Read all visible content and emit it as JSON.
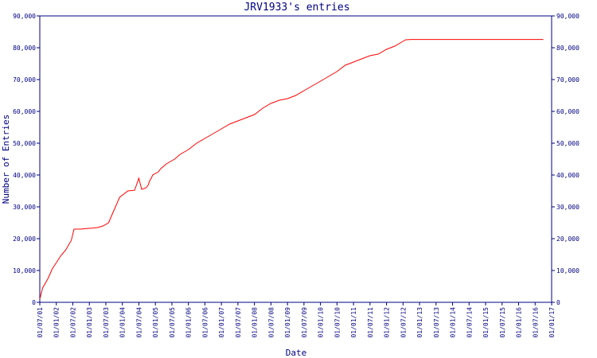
{
  "chart_data": {
    "type": "line",
    "title": "JRV1933's entries",
    "xlabel": "Date",
    "ylabel": "Number of Entries",
    "ylim": [
      0,
      90000
    ],
    "yticks": [
      0,
      10000,
      20000,
      30000,
      40000,
      50000,
      60000,
      70000,
      80000,
      90000
    ],
    "ytick_labels": [
      "0",
      "10,000",
      "20,000",
      "30,000",
      "40,000",
      "50,000",
      "60,000",
      "70,000",
      "80,000",
      "90,000"
    ],
    "xlim": [
      "2001-07-01",
      "2017-01-01"
    ],
    "xtick_labels": [
      "01/07/01",
      "01/01/02",
      "01/07/02",
      "01/01/03",
      "01/07/03",
      "01/01/04",
      "01/07/04",
      "01/01/05",
      "01/07/05",
      "01/01/06",
      "01/07/06",
      "01/01/07",
      "01/07/07",
      "01/01/08",
      "01/07/08",
      "01/01/09",
      "01/07/09",
      "01/01/10",
      "01/07/10",
      "01/01/11",
      "01/07/11",
      "01/01/12",
      "01/07/12",
      "01/01/13",
      "01/07/13",
      "01/01/14",
      "01/07/14",
      "01/01/15",
      "01/07/15",
      "01/01/16",
      "01/07/16",
      "01/01/17"
    ],
    "right_axis": true,
    "grid": false,
    "colors": {
      "axis": "#000080",
      "series": "#ff0000",
      "background": "#ffffff"
    },
    "series": [
      {
        "x": [
          "2001-07-01",
          "2001-08-01",
          "2001-10-01",
          "2001-11-15",
          "2002-01-01",
          "2002-02-15",
          "2002-04-15",
          "2002-06-15",
          "2002-07-15",
          "2002-07-25",
          "2002-10-01",
          "2002-12-01",
          "2003-02-01",
          "2003-04-01",
          "2003-06-01",
          "2003-08-01",
          "2003-10-01",
          "2003-12-01",
          "2004-03-01",
          "2004-05-15",
          "2004-07-01",
          "2004-08-01",
          "2004-09-20",
          "2004-10-15",
          "2004-10-25",
          "2004-11-15",
          "2004-12-01",
          "2005-02-01",
          "2005-03-01",
          "2005-05-01",
          "2005-08-01",
          "2005-10-01",
          "2006-01-01",
          "2006-04-01",
          "2006-07-01",
          "2006-10-01",
          "2007-01-01",
          "2007-04-01",
          "2007-07-01",
          "2007-10-01",
          "2008-01-01",
          "2008-04-01",
          "2008-07-01",
          "2008-10-01",
          "2009-01-01",
          "2009-04-01",
          "2009-07-01",
          "2009-10-01",
          "2010-01-01",
          "2010-04-01",
          "2010-07-01",
          "2010-10-01",
          "2011-01-01",
          "2011-04-01",
          "2011-07-01",
          "2011-10-01",
          "2012-01-01",
          "2012-04-01",
          "2012-07-01",
          "2012-08-01",
          "2012-10-01",
          "2013-01-01",
          "2013-04-01",
          "2013-06-15",
          "2013-07-01",
          "2014-01-01",
          "2015-01-01",
          "2016-01-01",
          "2016-10-01"
        ],
        "y": [
          1000,
          4500,
          7500,
          10500,
          12500,
          14500,
          16500,
          19500,
          23000,
          23000,
          23000,
          23200,
          23300,
          23500,
          24000,
          25000,
          29000,
          33000,
          35000,
          35200,
          39000,
          35500,
          36000,
          37000,
          38000,
          39000,
          40000,
          41000,
          42000,
          43500,
          45000,
          46500,
          48000,
          50000,
          51500,
          53000,
          54500,
          56000,
          57000,
          58000,
          59000,
          61000,
          62500,
          63500,
          64000,
          65000,
          66500,
          68000,
          69500,
          71000,
          72500,
          74500,
          75500,
          76500,
          77500,
          78000,
          79500,
          80500,
          82000,
          82500,
          82600,
          82600,
          82600,
          82600,
          82600,
          82600,
          82600,
          82600,
          82600
        ]
      }
    ]
  }
}
